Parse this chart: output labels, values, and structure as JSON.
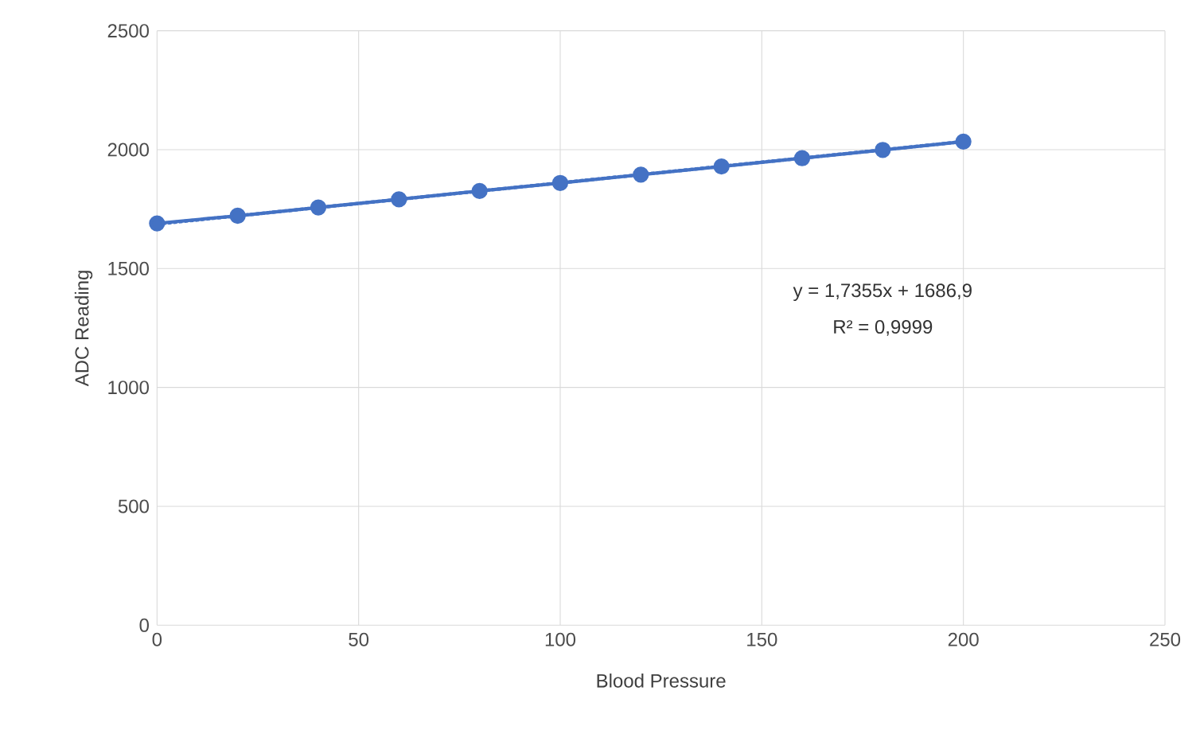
{
  "chart_data": {
    "type": "line",
    "xlabel": "Blood Pressure",
    "ylabel": "ADC Reading",
    "x": [
      0,
      20,
      40,
      60,
      80,
      100,
      120,
      140,
      160,
      180,
      200
    ],
    "series": [
      {
        "color": "#4472c4",
        "marker": "circle",
        "line_style": "solid",
        "values": [
          1690,
          1722,
          1757,
          1791,
          1826,
          1860,
          1895,
          1929,
          1964,
          1999,
          2034
        ]
      },
      {
        "type": "line",
        "color": "#4472c4",
        "marker": "none",
        "line_style": "dotted",
        "x": [
          0,
          200
        ],
        "values": [
          1687,
          2034
        ]
      }
    ],
    "annotations": [
      "y = 1,7355x + 1686,9",
      "R² = 0,9999"
    ],
    "xlim": [
      0,
      250
    ],
    "xticks": [
      0,
      50,
      100,
      150,
      200,
      250
    ],
    "ylim": [
      0,
      2500
    ],
    "yticks": [
      0,
      500,
      1000,
      1500,
      2000,
      2500
    ],
    "grid": true
  }
}
